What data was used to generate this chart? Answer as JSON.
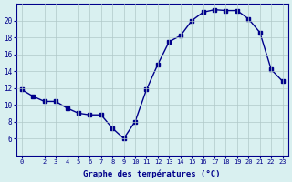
{
  "hours": [
    0,
    1,
    2,
    3,
    4,
    5,
    6,
    7,
    8,
    9,
    10,
    11,
    12,
    13,
    14,
    15,
    16,
    17,
    18,
    19,
    20,
    21,
    22,
    23
  ],
  "temps": [
    11.8,
    11.0,
    10.4,
    10.4,
    9.6,
    9.0,
    8.8,
    8.8,
    7.2,
    6.0,
    8.0,
    11.8,
    14.8,
    17.5,
    18.2,
    20.0,
    21.0,
    21.3,
    21.2,
    21.2,
    20.2,
    18.6,
    14.2,
    12.8
  ],
  "line_color": "#00008b",
  "marker_color": "#00008b",
  "bg_color": "#d9f0f0",
  "grid_color": "#b0c8c8",
  "xlabel": "Graphe des températures (°C)",
  "xlabel_color": "#00008b",
  "tick_color": "#00008b",
  "ylim": [
    4,
    22
  ],
  "yticks": [
    6,
    8,
    10,
    12,
    14,
    16,
    18,
    20
  ],
  "xticks": [
    0,
    2,
    3,
    4,
    5,
    6,
    7,
    8,
    9,
    10,
    11,
    12,
    13,
    14,
    15,
    16,
    17,
    18,
    19,
    20,
    21,
    22,
    23
  ]
}
